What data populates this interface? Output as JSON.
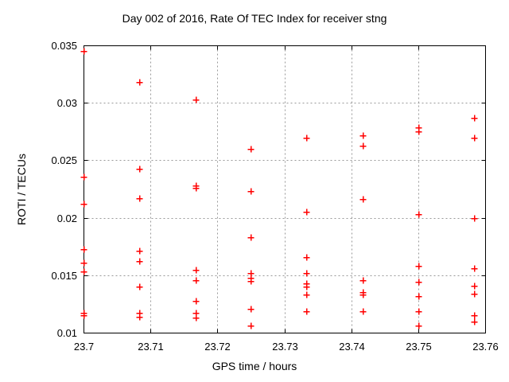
{
  "chart_data": {
    "type": "scatter",
    "title": "Day 002 of 2016, Rate Of TEC Index for receiver stng",
    "xlabel": "GPS time / hours",
    "ylabel": "ROTI / TECUs",
    "xlim": [
      23.7,
      23.76
    ],
    "ylim": [
      0.01,
      0.035
    ],
    "xticks": [
      23.7,
      23.71,
      23.72,
      23.73,
      23.74,
      23.75,
      23.76
    ],
    "xtick_labels": [
      "23.7",
      "23.71",
      "23.72",
      "23.73",
      "23.74",
      "23.75",
      "23.76"
    ],
    "yticks": [
      0.01,
      0.015,
      0.02,
      0.025,
      0.03,
      0.035
    ],
    "ytick_labels": [
      "0.01",
      "0.015",
      "0.02",
      "0.025",
      "0.03",
      "0.035"
    ],
    "grid": true,
    "legend": "none",
    "marker": "plus",
    "marker_color": "#ff0000",
    "axis_color": "#000000",
    "grid_color": "#999999",
    "series": [
      {
        "name": "ROTI",
        "points": [
          [
            23.7,
            0.0345
          ],
          [
            23.7,
            0.0236
          ],
          [
            23.7,
            0.0212
          ],
          [
            23.7,
            0.0173
          ],
          [
            23.7,
            0.0161
          ],
          [
            23.7,
            0.0153
          ],
          [
            23.7,
            0.0117
          ],
          [
            23.7,
            0.0115
          ],
          [
            23.7083,
            0.0318
          ],
          [
            23.7083,
            0.0243
          ],
          [
            23.7083,
            0.0217
          ],
          [
            23.7083,
            0.0171
          ],
          [
            23.7083,
            0.0162
          ],
          [
            23.7083,
            0.014
          ],
          [
            23.7083,
            0.0117
          ],
          [
            23.7083,
            0.0114
          ],
          [
            23.7167,
            0.0303
          ],
          [
            23.7167,
            0.0228
          ],
          [
            23.7167,
            0.0226
          ],
          [
            23.7167,
            0.0155
          ],
          [
            23.7167,
            0.0146
          ],
          [
            23.7167,
            0.0128
          ],
          [
            23.7167,
            0.0117
          ],
          [
            23.7167,
            0.0113
          ],
          [
            23.725,
            0.026
          ],
          [
            23.725,
            0.0223
          ],
          [
            23.725,
            0.0183
          ],
          [
            23.725,
            0.0152
          ],
          [
            23.725,
            0.0148
          ],
          [
            23.725,
            0.0145
          ],
          [
            23.725,
            0.0121
          ],
          [
            23.725,
            0.0106
          ],
          [
            23.7333,
            0.027
          ],
          [
            23.7333,
            0.0205
          ],
          [
            23.7333,
            0.0166
          ],
          [
            23.7333,
            0.0152
          ],
          [
            23.7333,
            0.0143
          ],
          [
            23.7333,
            0.014
          ],
          [
            23.7333,
            0.0133
          ],
          [
            23.7333,
            0.0119
          ],
          [
            23.7417,
            0.0272
          ],
          [
            23.7417,
            0.0263
          ],
          [
            23.7417,
            0.0216
          ],
          [
            23.7417,
            0.0146
          ],
          [
            23.7417,
            0.0135
          ],
          [
            23.7417,
            0.0133
          ],
          [
            23.7417,
            0.0119
          ],
          [
            23.75,
            0.0279
          ],
          [
            23.75,
            0.0275
          ],
          [
            23.75,
            0.0203
          ],
          [
            23.75,
            0.0158
          ],
          [
            23.75,
            0.0144
          ],
          [
            23.75,
            0.0132
          ],
          [
            23.75,
            0.0119
          ],
          [
            23.75,
            0.0106
          ],
          [
            23.7583,
            0.0287
          ],
          [
            23.7583,
            0.027
          ],
          [
            23.7583,
            0.02
          ],
          [
            23.7583,
            0.0156
          ],
          [
            23.7583,
            0.0141
          ],
          [
            23.7583,
            0.0134
          ],
          [
            23.7583,
            0.0115
          ],
          [
            23.7583,
            0.011
          ]
        ]
      }
    ]
  }
}
